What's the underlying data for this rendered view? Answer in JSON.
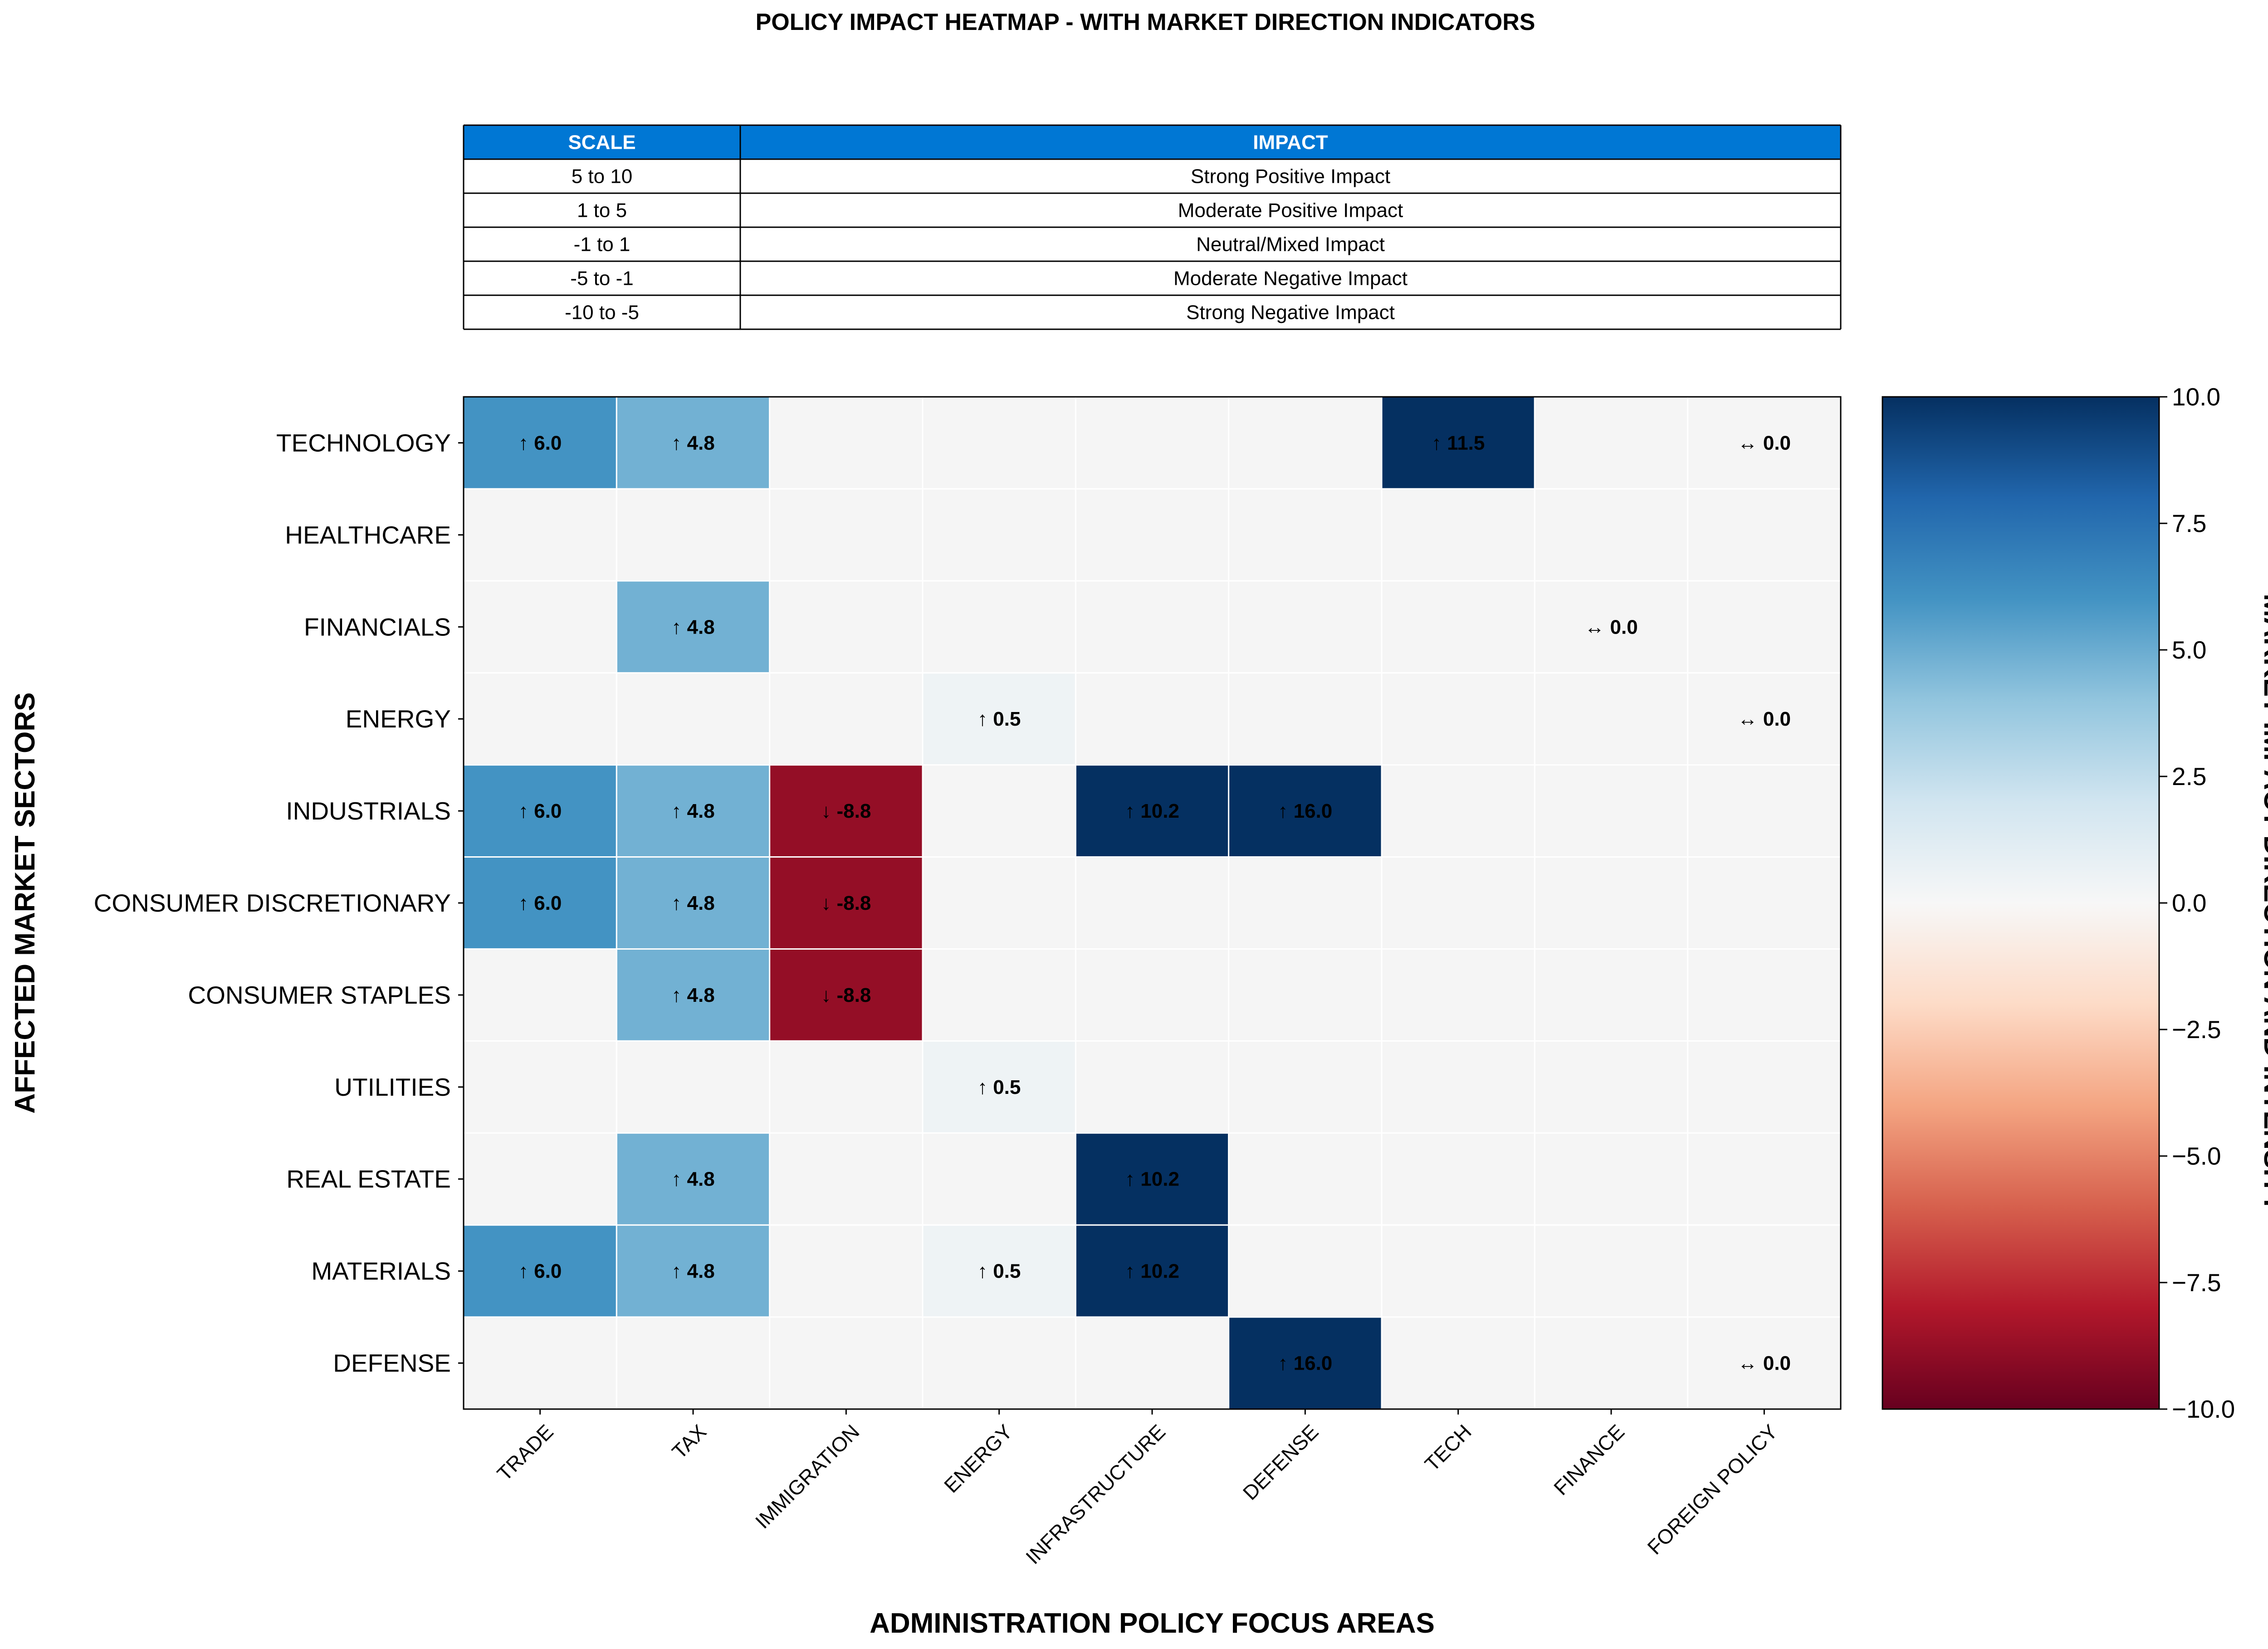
{
  "chart_data": {
    "type": "heatmap",
    "title": "POLICY IMPACT HEATMAP - WITH MARKET DIRECTION INDICATORS",
    "xlabel": "ADMINISTRATION POLICY FOCUS AREAS",
    "ylabel": "AFFECTED MARKET SECTORS",
    "colorbar_label": "MARKET IMPACT DIRECTION AND INTENSITY",
    "colorbar_ticks": [
      "10.0",
      "7.5",
      "5.0",
      "2.5",
      "0.0",
      "−2.5",
      "−5.0",
      "−7.5",
      "−10.0"
    ],
    "colorbar_tick_values": [
      10,
      7.5,
      5,
      2.5,
      0,
      -2.5,
      -5,
      -7.5,
      -10
    ],
    "vmin": -10,
    "vmax": 10,
    "colormap": "RdBu",
    "x_categories": [
      "TRADE",
      "TAX",
      "IMMIGRATION",
      "ENERGY",
      "INFRASTRUCTURE",
      "DEFENSE",
      "TECH",
      "FINANCE",
      "FOREIGN POLICY"
    ],
    "y_categories": [
      "TECHNOLOGY",
      "HEALTHCARE",
      "FINANCIALS",
      "ENERGY",
      "INDUSTRIALS",
      "CONSUMER DISCRETIONARY",
      "CONSUMER STAPLES",
      "UTILITIES",
      "REAL ESTATE",
      "MATERIALS",
      "DEFENSE"
    ],
    "values": [
      [
        6.0,
        4.8,
        null,
        null,
        null,
        null,
        11.5,
        null,
        0.0
      ],
      [
        null,
        null,
        null,
        null,
        null,
        null,
        null,
        null,
        null
      ],
      [
        null,
        4.8,
        null,
        null,
        null,
        null,
        null,
        0.0,
        null
      ],
      [
        null,
        null,
        null,
        0.5,
        null,
        null,
        null,
        null,
        0.0
      ],
      [
        6.0,
        4.8,
        -8.8,
        null,
        10.2,
        16.0,
        null,
        null,
        null
      ],
      [
        6.0,
        4.8,
        -8.8,
        null,
        null,
        null,
        null,
        null,
        null
      ],
      [
        null,
        4.8,
        -8.8,
        null,
        null,
        null,
        null,
        null,
        null
      ],
      [
        null,
        null,
        null,
        0.5,
        null,
        null,
        null,
        null,
        null
      ],
      [
        null,
        4.8,
        null,
        null,
        10.2,
        null,
        null,
        null,
        null
      ],
      [
        6.0,
        4.8,
        null,
        0.5,
        10.2,
        null,
        null,
        null,
        null
      ],
      [
        null,
        null,
        null,
        null,
        null,
        16.0,
        null,
        null,
        0.0
      ]
    ],
    "arrows": {
      "up": "↑",
      "down": "↓",
      "neutral": "↔"
    }
  },
  "legend_table": {
    "headers": [
      "SCALE",
      "IMPACT"
    ],
    "rows": [
      [
        "5 to 10",
        "Strong Positive Impact"
      ],
      [
        "1 to 5",
        "Moderate Positive Impact"
      ],
      [
        "-1 to 1",
        "Neutral/Mixed Impact"
      ],
      [
        "-5 to -1",
        "Moderate Negative Impact"
      ],
      [
        "-10 to -5",
        "Strong Negative Impact"
      ]
    ],
    "header_color": "#0077d4"
  },
  "empty_cell_color": "#f5f5f5"
}
